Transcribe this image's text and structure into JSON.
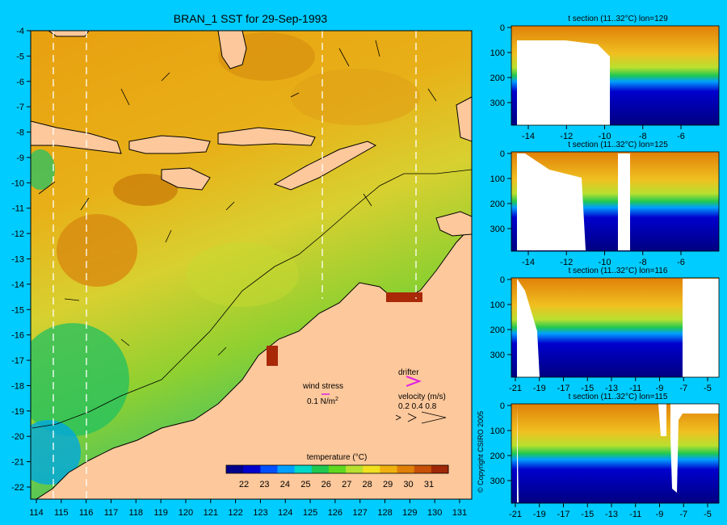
{
  "map": {
    "title": "BRAN_1 SST for 29-Sep-1993",
    "lon_ticks": [
      "114",
      "115",
      "116",
      "117",
      "118",
      "119",
      "120",
      "121",
      "122",
      "123",
      "124",
      "125",
      "126",
      "127",
      "128",
      "129",
      "130",
      "131"
    ],
    "lat_ticks": [
      "-4",
      "-5",
      "-6",
      "-7",
      "-8",
      "-9",
      "-10",
      "-11",
      "-12",
      "-13",
      "-14",
      "-15",
      "-16",
      "-17",
      "-18",
      "-19",
      "-20",
      "-21",
      "-22"
    ],
    "colorbar_label": "temperature (°C)",
    "colorbar_ticks": [
      "22",
      "23",
      "24",
      "25",
      "26",
      "27",
      "28",
      "29",
      "30",
      "31"
    ],
    "colorbar_colors": [
      "#00008b",
      "#0000cd",
      "#0050ff",
      "#00a0ff",
      "#00d8c8",
      "#20c850",
      "#60d820",
      "#b8e030",
      "#f0e020",
      "#f0b010",
      "#e08008",
      "#c85008",
      "#a02808"
    ],
    "wind_stress_label": "wind stress",
    "wind_stress_value": "0.1 N/m",
    "wind_stress_exp": "2",
    "drifter_label": "drifter",
    "velocity_label": "velocity (m/s)",
    "velocity_values": "0.2 0.4 0.8",
    "copyright": "© Copyright CSIRO 2005"
  },
  "sections": [
    {
      "title": "t section (11..32°C) lon=129",
      "xticks": [
        "-14",
        "-12",
        "-10",
        "-8",
        "-6"
      ],
      "yticks": [
        "0",
        "100",
        "200",
        "300"
      ]
    },
    {
      "title": "t section (11..32°C) lon=125",
      "xticks": [
        "-14",
        "-12",
        "-10",
        "-8",
        "-6"
      ],
      "yticks": [
        "0",
        "100",
        "200",
        "300"
      ]
    },
    {
      "title": "t section (11..32°C) lon=116",
      "xticks": [
        "-21",
        "-19",
        "-17",
        "-15",
        "-13",
        "-11",
        "-9",
        "-7",
        "-5"
      ],
      "yticks": [
        "0",
        "100",
        "200",
        "300"
      ]
    },
    {
      "title": "t section (11..32°C) lon=115",
      "xticks": [
        "-21",
        "-19",
        "-17",
        "-15",
        "-13",
        "-11",
        "-9",
        "-7",
        "-5"
      ],
      "yticks": [
        "0",
        "100",
        "200",
        "300"
      ]
    }
  ]
}
